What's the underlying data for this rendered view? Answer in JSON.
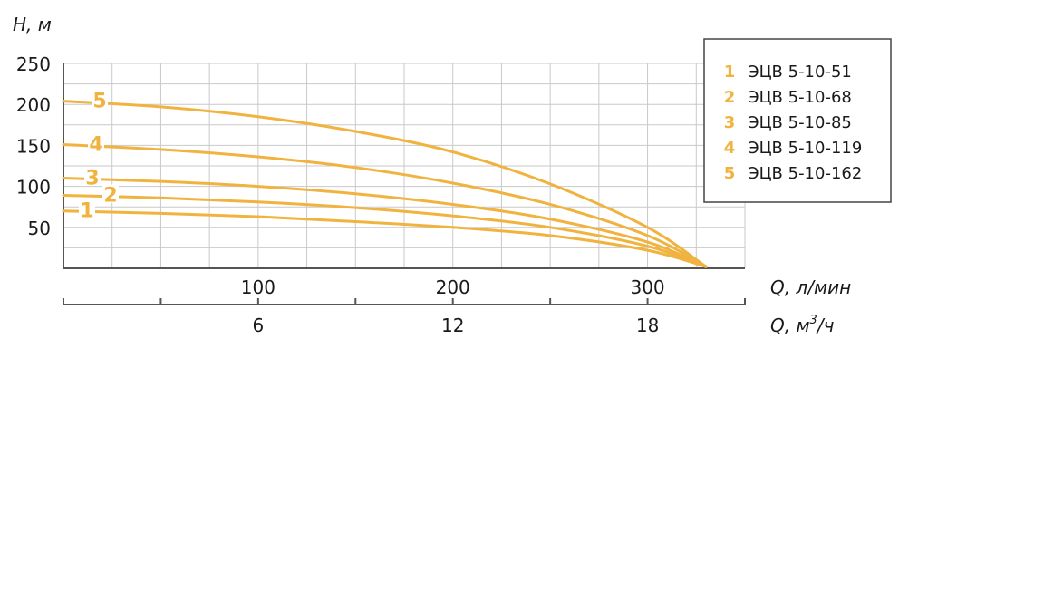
{
  "chart_data": {
    "type": "line",
    "ylabel": "Н, м",
    "xlabel": "Q, л/мин",
    "x2label_base": "Q, м",
    "x2label_sup": "3",
    "x2label_tail": "/ч",
    "xlim": [
      0,
      350
    ],
    "ylim": [
      0,
      250
    ],
    "yticks": [
      "50",
      "100",
      "150",
      "200",
      "250"
    ],
    "ytick_values": [
      50,
      100,
      150,
      200,
      250
    ],
    "xticks": [
      "100",
      "200",
      "300"
    ],
    "xtick_values": [
      100,
      200,
      300
    ],
    "x2ticks": [
      "6",
      "12",
      "18"
    ],
    "x2tick_values": [
      100,
      200,
      300
    ],
    "grid": true,
    "legend_position": "top-right",
    "color": "#F1B33F",
    "series": [
      {
        "id": "1",
        "name": "ЭЦВ 5-10-51",
        "x": [
          0,
          50,
          100,
          150,
          200,
          250,
          300,
          330
        ],
        "y": [
          70,
          67,
          63,
          57,
          50,
          40,
          22,
          2
        ]
      },
      {
        "id": "2",
        "name": "ЭЦВ 5-10-68",
        "x": [
          0,
          50,
          100,
          150,
          200,
          250,
          300,
          330
        ],
        "y": [
          89,
          86,
          81,
          74,
          64,
          50,
          27,
          2
        ]
      },
      {
        "id": "3",
        "name": "ЭЦВ 5-10-85",
        "x": [
          0,
          50,
          100,
          150,
          200,
          250,
          300,
          330
        ],
        "y": [
          110,
          106,
          100,
          91,
          78,
          60,
          32,
          2
        ]
      },
      {
        "id": "4",
        "name": "ЭЦВ 5-10-119",
        "x": [
          0,
          50,
          100,
          150,
          200,
          250,
          300,
          330
        ],
        "y": [
          151,
          145,
          136,
          123,
          104,
          78,
          40,
          2
        ]
      },
      {
        "id": "5",
        "name": "ЭЦВ 5-10-162",
        "x": [
          0,
          50,
          100,
          150,
          200,
          250,
          300,
          330
        ],
        "y": [
          204,
          197,
          185,
          167,
          142,
          103,
          50,
          2
        ]
      }
    ]
  }
}
